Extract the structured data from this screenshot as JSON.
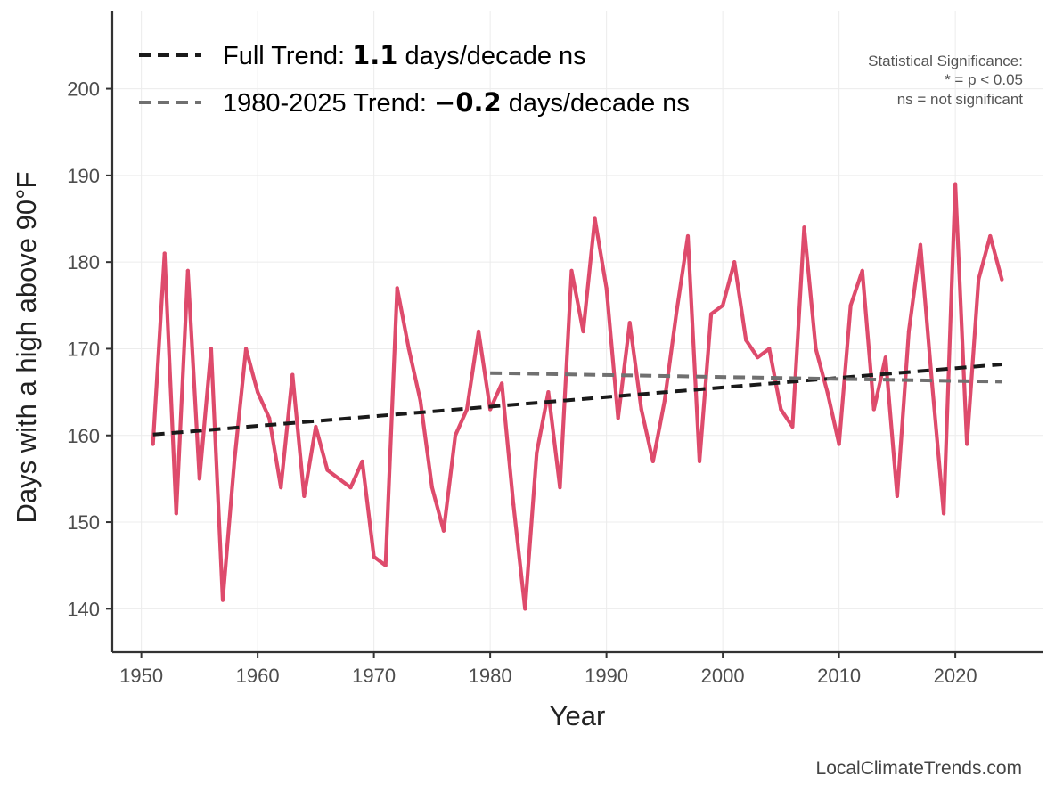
{
  "chart_data": {
    "type": "line",
    "xlabel": "Year",
    "ylabel": "Days with a high above 90°F",
    "xlim": [
      1947.5,
      2027.5
    ],
    "ylim": [
      135,
      209
    ],
    "x_ticks": [
      1950,
      1960,
      1970,
      1980,
      1990,
      2000,
      2010,
      2020
    ],
    "y_ticks": [
      140,
      150,
      160,
      170,
      180,
      190,
      200
    ],
    "grid": true,
    "legend_position": "top-left",
    "series": [
      {
        "color": "#de4b6c",
        "x": [
          1951,
          1952,
          1953,
          1954,
          1955,
          1956,
          1957,
          1958,
          1959,
          1960,
          1961,
          1962,
          1963,
          1964,
          1965,
          1966,
          1967,
          1968,
          1969,
          1970,
          1971,
          1972,
          1973,
          1974,
          1975,
          1976,
          1977,
          1978,
          1979,
          1980,
          1981,
          1982,
          1983,
          1984,
          1985,
          1986,
          1987,
          1988,
          1989,
          1990,
          1991,
          1992,
          1993,
          1994,
          1995,
          1996,
          1997,
          1998,
          1999,
          2000,
          2001,
          2002,
          2003,
          2004,
          2005,
          2006,
          2007,
          2008,
          2009,
          2010,
          2011,
          2012,
          2013,
          2014,
          2015,
          2016,
          2017,
          2018,
          2019,
          2020,
          2021,
          2022,
          2023,
          2024
        ],
        "y": [
          159,
          181,
          151,
          179,
          155,
          170,
          141,
          157,
          170,
          165,
          162,
          154,
          167,
          153,
          161,
          156,
          155,
          154,
          157,
          146,
          145,
          177,
          170,
          164,
          154,
          149,
          160,
          163,
          172,
          163,
          166,
          152,
          140,
          158,
          165,
          154,
          179,
          172,
          185,
          177,
          162,
          173,
          163,
          157,
          164,
          174,
          183,
          157,
          174,
          175,
          180,
          171,
          169,
          170,
          163,
          161,
          184,
          170,
          165,
          159,
          175,
          179,
          163,
          169,
          153,
          172,
          182,
          166,
          151,
          189,
          159,
          178,
          183,
          178
        ]
      }
    ],
    "trend_lines": [
      {
        "name": "Full Trend",
        "color": "#1a1a1a",
        "x": [
          1951,
          2024
        ],
        "y": [
          160.1,
          168.2
        ]
      },
      {
        "name": "1980-2025 Trend",
        "color": "#707070",
        "x": [
          1980,
          2024
        ],
        "y": [
          167.2,
          166.2
        ]
      }
    ],
    "legend": [
      {
        "prefix": "Full Trend: ",
        "value": "1.1",
        "suffix": " days/decade ns",
        "color": "#1a1a1a"
      },
      {
        "prefix": "1980-2025 Trend: ",
        "value": "−0.2",
        "suffix": " days/decade ns",
        "color": "#707070"
      }
    ],
    "annotation": [
      "Statistical Significance:",
      "* = p < 0.05",
      "ns = not significant"
    ]
  },
  "footer": "LocalClimateTrends.com"
}
